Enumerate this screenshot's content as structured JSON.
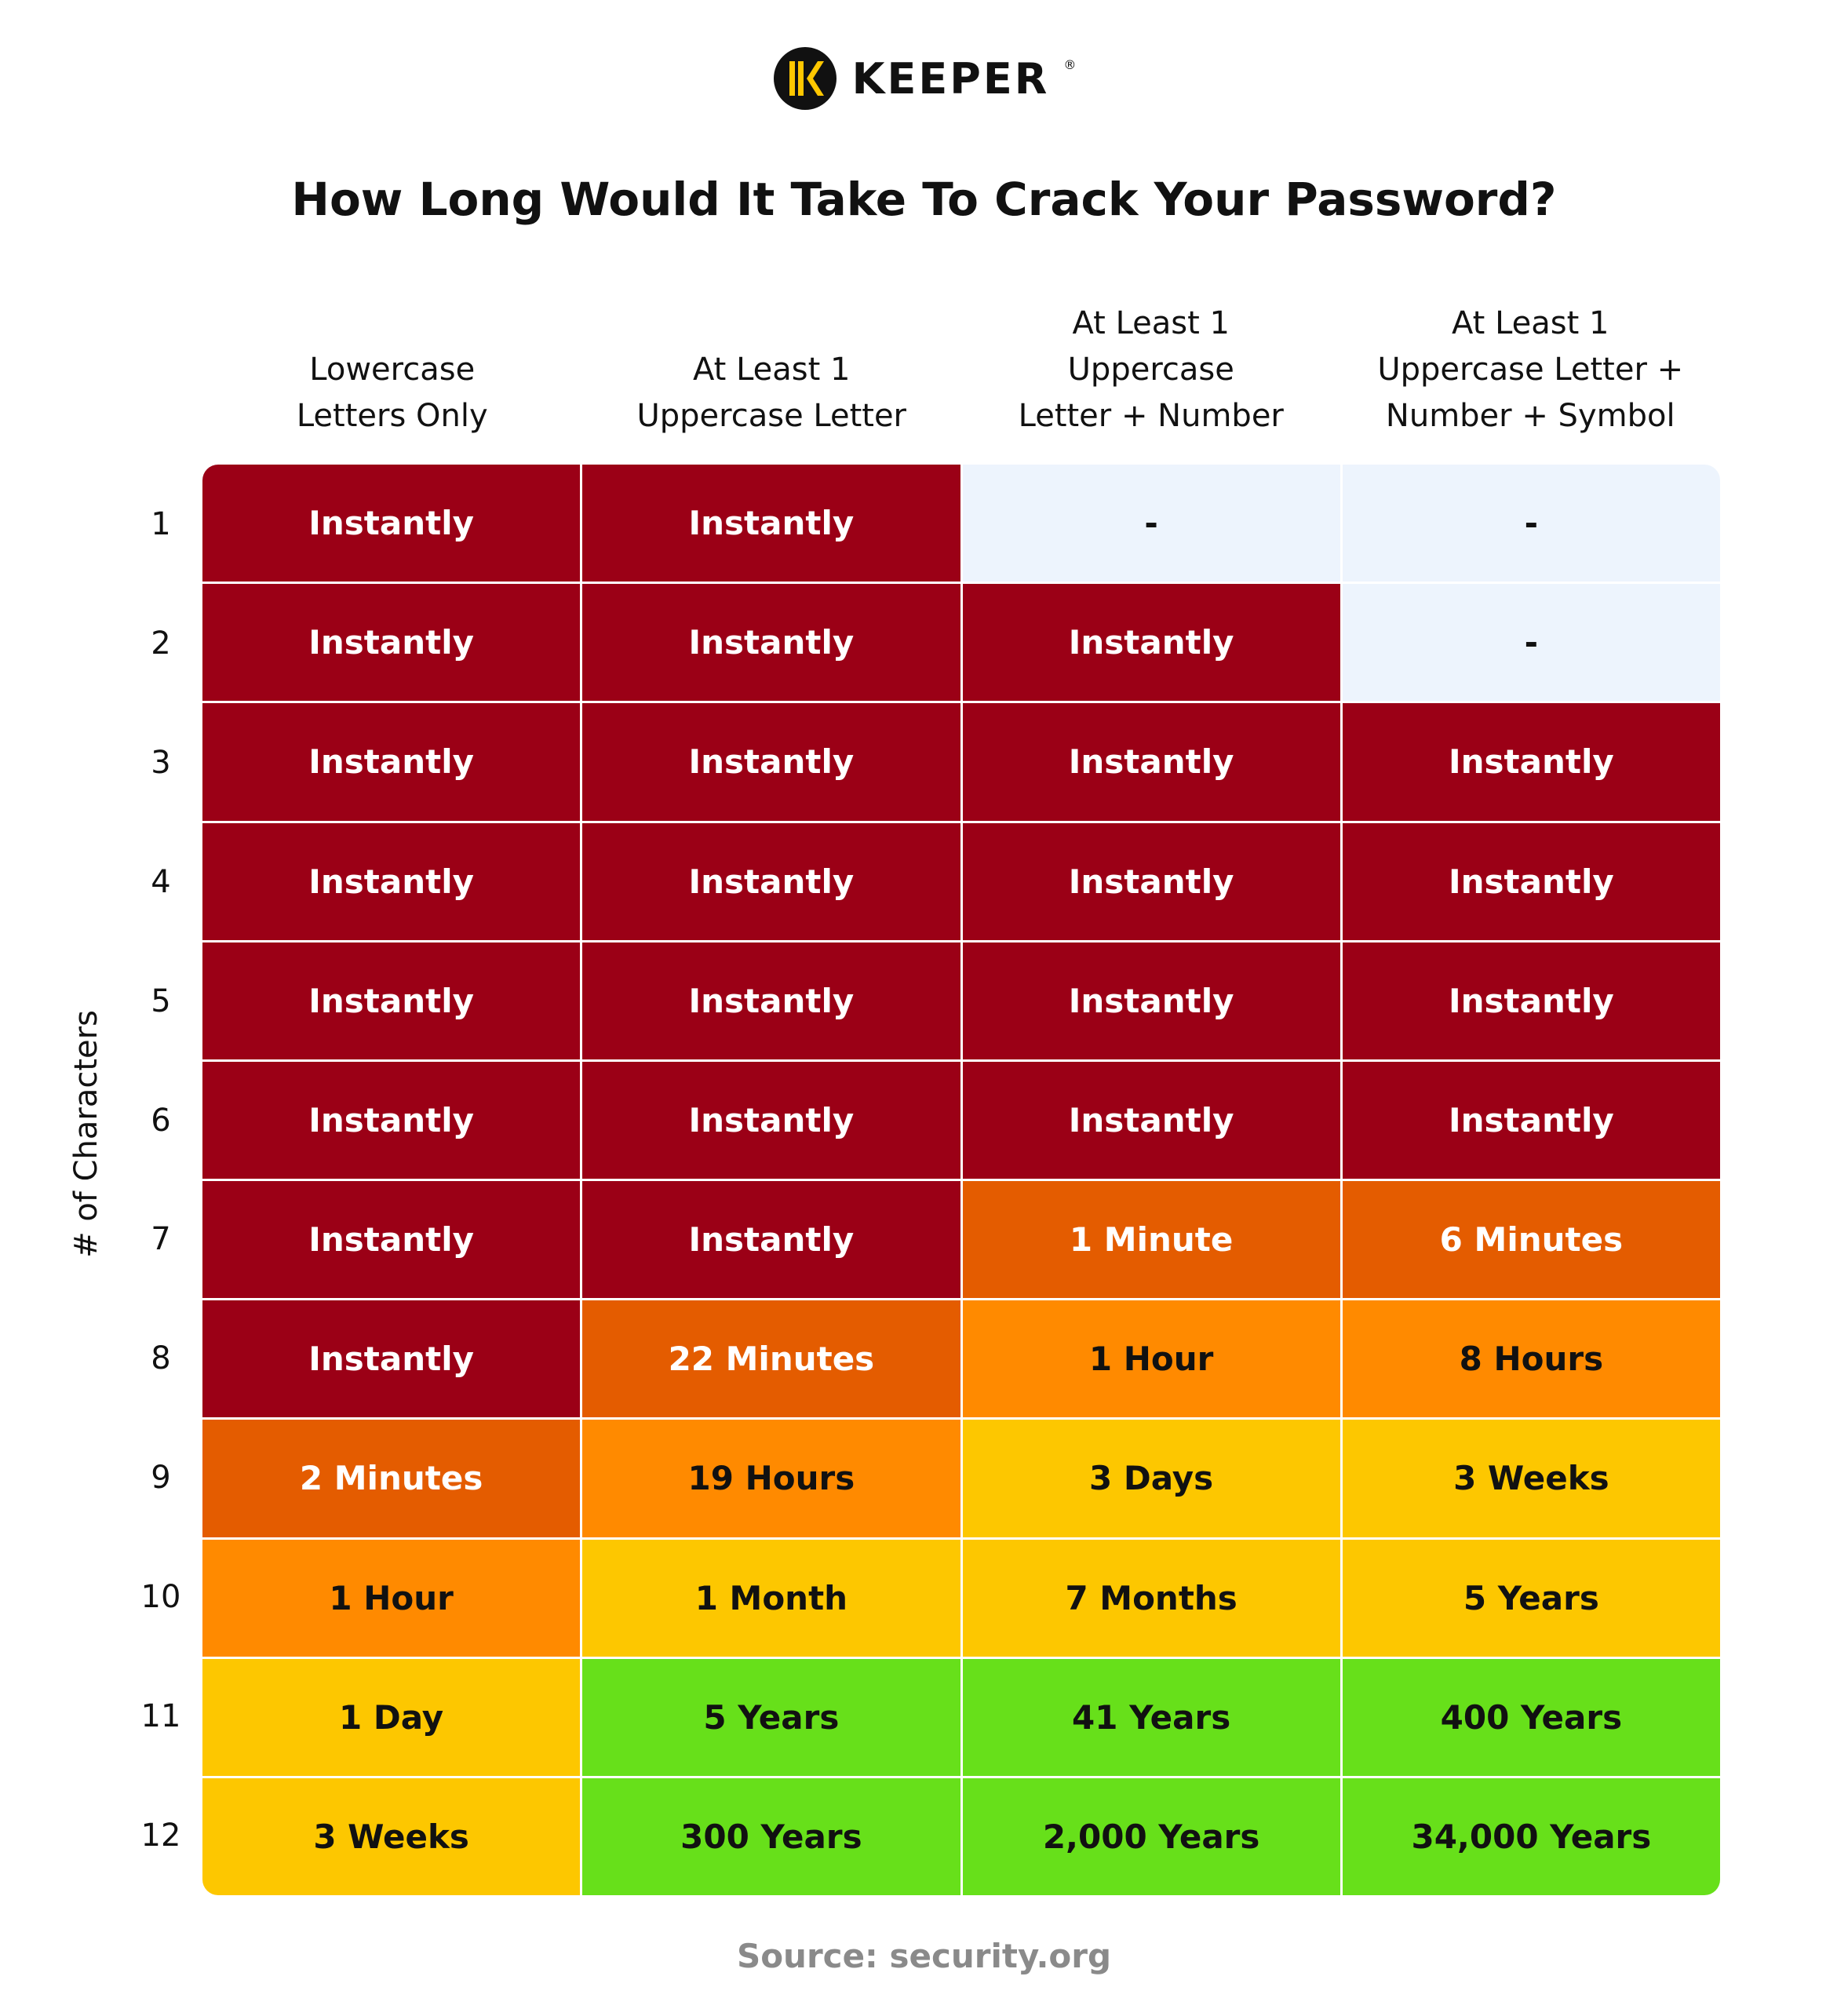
{
  "logo": {
    "text": "KEEPER",
    "mark": "®"
  },
  "title": "How Long Would It Take To Crack Your Password?",
  "table": {
    "row_axis_label": "# of Characters",
    "columns": [
      "Lowercase\nLetters Only",
      "At Least 1\nUppercase Letter",
      "At Least 1\nUppercase\nLetter  +  Number",
      "At Least 1\nUppercase Letter +\nNumber + Symbol"
    ],
    "rows": [
      {
        "label": "1",
        "cells": [
          "Instantly",
          "Instantly",
          "-",
          "-"
        ],
        "colors": [
          "#9b0016",
          "#9b0016",
          "#edf4fd",
          "#edf4fd"
        ]
      },
      {
        "label": "2",
        "cells": [
          "Instantly",
          "Instantly",
          "Instantly",
          "-"
        ],
        "colors": [
          "#9b0016",
          "#9b0016",
          "#9b0016",
          "#edf4fd"
        ]
      },
      {
        "label": "3",
        "cells": [
          "Instantly",
          "Instantly",
          "Instantly",
          "Instantly"
        ],
        "colors": [
          "#9b0016",
          "#9b0016",
          "#9b0016",
          "#9b0016"
        ]
      },
      {
        "label": "4",
        "cells": [
          "Instantly",
          "Instantly",
          "Instantly",
          "Instantly"
        ],
        "colors": [
          "#9b0016",
          "#9b0016",
          "#9b0016",
          "#9b0016"
        ]
      },
      {
        "label": "5",
        "cells": [
          "Instantly",
          "Instantly",
          "Instantly",
          "Instantly"
        ],
        "colors": [
          "#9b0016",
          "#9b0016",
          "#9b0016",
          "#9b0016"
        ]
      },
      {
        "label": "6",
        "cells": [
          "Instantly",
          "Instantly",
          "Instantly",
          "Instantly"
        ],
        "colors": [
          "#9b0016",
          "#9b0016",
          "#9b0016",
          "#9b0016"
        ]
      },
      {
        "label": "7",
        "cells": [
          "Instantly",
          "Instantly",
          "1 Minute",
          "6 Minutes"
        ],
        "colors": [
          "#9b0016",
          "#9b0016",
          "#e45c00",
          "#e45c00"
        ]
      },
      {
        "label": "8",
        "cells": [
          "Instantly",
          "22 Minutes",
          "1 Hour",
          "8 Hours"
        ],
        "colors": [
          "#9b0016",
          "#e45c00",
          "#ff8a00",
          "#ff8a00"
        ]
      },
      {
        "label": "9",
        "cells": [
          "2 Minutes",
          "19 Hours",
          "3 Days",
          "3 Weeks"
        ],
        "colors": [
          "#e45c00",
          "#ff8a00",
          "#fdc700",
          "#fdc700"
        ]
      },
      {
        "label": "10",
        "cells": [
          "1 Hour",
          "1 Month",
          "7 Months",
          "5 Years"
        ],
        "colors": [
          "#ff8a00",
          "#fdc700",
          "#fdc700",
          "#fdc700"
        ]
      },
      {
        "label": "11",
        "cells": [
          "1 Day",
          "5 Years",
          "41 Years",
          "400 Years"
        ],
        "colors": [
          "#fdc700",
          "#67e01a",
          "#67e01a",
          "#67e01a"
        ]
      },
      {
        "label": "12",
        "cells": [
          "3 Weeks",
          "300 Years",
          "2,000 Years",
          "34,000 Years"
        ],
        "colors": [
          "#fdc700",
          "#67e01a",
          "#67e01a",
          "#67e01a"
        ]
      }
    ]
  },
  "source": "Source: security.org"
}
